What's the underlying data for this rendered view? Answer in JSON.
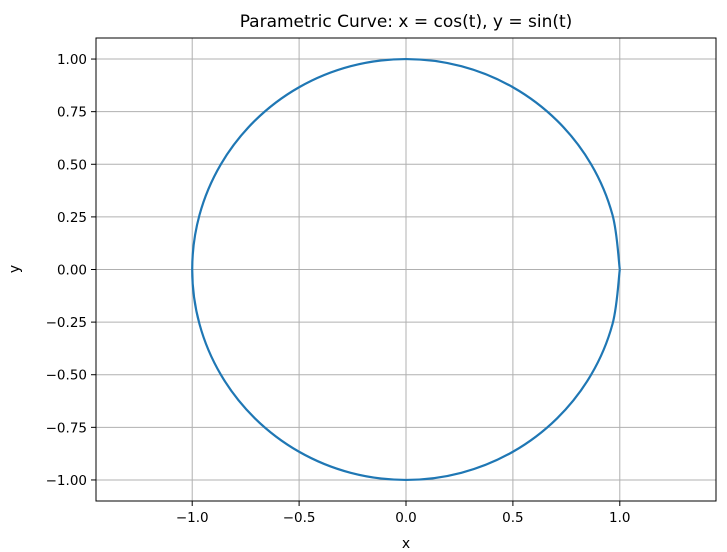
{
  "chart_data": {
    "type": "line",
    "title": "Parametric Curve: x = cos(t), y = sin(t)",
    "xlabel": "x",
    "ylabel": "y",
    "xlim": [
      -1.45,
      1.45
    ],
    "ylim": [
      -1.1,
      1.1
    ],
    "grid": true,
    "x_ticks": [
      -1.0,
      -0.5,
      0.0,
      0.5,
      1.0
    ],
    "x_tick_labels": [
      "−1.0",
      "−0.5",
      "0.0",
      "0.5",
      "1.0"
    ],
    "y_ticks": [
      1.0,
      0.75,
      0.5,
      0.25,
      0.0,
      -0.25,
      -0.5,
      -0.75,
      -1.0
    ],
    "y_tick_labels": [
      "1.00",
      "0.75",
      "0.50",
      "0.25",
      "0.00",
      "−0.25",
      "−0.50",
      "−0.75",
      "−1.00"
    ],
    "series": [
      {
        "color": "#1f77b4",
        "x": [
          1.0,
          0.966,
          0.866,
          0.707,
          0.5,
          0.259,
          0.0,
          -0.259,
          -0.5,
          -0.707,
          -0.866,
          -0.966,
          -1.0,
          -0.966,
          -0.866,
          -0.707,
          -0.5,
          -0.259,
          0.0,
          0.259,
          0.5,
          0.707,
          0.866,
          0.966,
          1.0
        ],
        "y": [
          0.0,
          0.259,
          0.5,
          0.707,
          0.866,
          0.966,
          1.0,
          0.966,
          0.866,
          0.707,
          0.5,
          0.259,
          0.0,
          -0.259,
          -0.5,
          -0.707,
          -0.866,
          -0.966,
          -1.0,
          -0.966,
          -0.866,
          -0.707,
          -0.5,
          -0.259,
          0.0
        ]
      }
    ]
  }
}
